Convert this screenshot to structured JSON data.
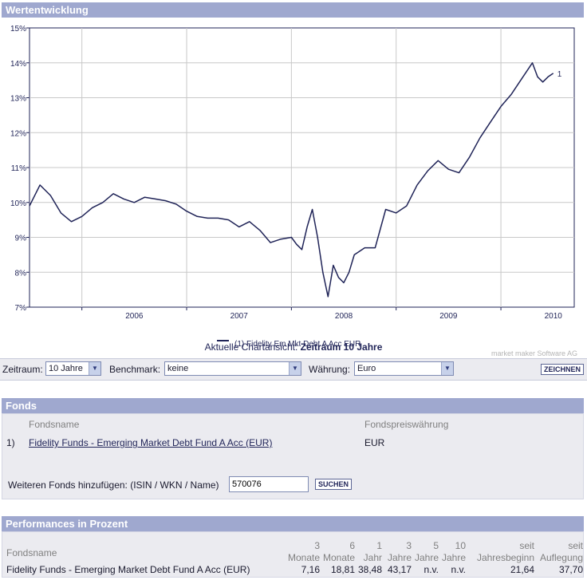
{
  "chart_section": {
    "title": "Wertentwicklung"
  },
  "chart_data": {
    "type": "line",
    "ylim": [
      7,
      15
    ],
    "y_ticks": [
      "7%",
      "8%",
      "9%",
      "10%",
      "11%",
      "12%",
      "13%",
      "14%",
      "15%"
    ],
    "x_ticks": [
      "2006",
      "2007",
      "2008",
      "2009",
      "2010"
    ],
    "grid": true,
    "legend_position": "bottom",
    "series": [
      {
        "name": "(1) Fidelity Em Mkt Debt A Acc EUR",
        "end_label": "1",
        "color": "#1f2357",
        "x": [
          2005.5,
          2005.6,
          2005.7,
          2005.8,
          2005.9,
          2006.0,
          2006.1,
          2006.2,
          2006.3,
          2006.4,
          2006.5,
          2006.6,
          2006.7,
          2006.8,
          2006.9,
          2007.0,
          2007.1,
          2007.2,
          2007.3,
          2007.4,
          2007.5,
          2007.6,
          2007.7,
          2007.8,
          2007.9,
          2008.0,
          2008.05,
          2008.1,
          2008.15,
          2008.2,
          2008.25,
          2008.3,
          2008.35,
          2008.4,
          2008.45,
          2008.5,
          2008.55,
          2008.6,
          2008.7,
          2008.8,
          2008.9,
          2009.0,
          2009.1,
          2009.2,
          2009.3,
          2009.4,
          2009.5,
          2009.6,
          2009.7,
          2009.8,
          2009.9,
          2010.0,
          2010.1,
          2010.2,
          2010.3,
          2010.35,
          2010.4,
          2010.45,
          2010.5
        ],
        "values": [
          9.9,
          10.5,
          10.2,
          9.7,
          9.45,
          9.6,
          9.85,
          10.0,
          10.25,
          10.1,
          10.0,
          10.15,
          10.1,
          10.05,
          9.95,
          9.75,
          9.6,
          9.55,
          9.55,
          9.5,
          9.3,
          9.45,
          9.2,
          8.85,
          8.95,
          9.0,
          8.8,
          8.65,
          9.3,
          9.8,
          9.0,
          8.0,
          7.3,
          8.2,
          7.85,
          7.7,
          8.0,
          8.5,
          8.7,
          8.7,
          9.8,
          9.7,
          9.9,
          10.5,
          10.9,
          11.2,
          10.95,
          10.85,
          11.3,
          11.85,
          12.3,
          12.75,
          13.1,
          13.55,
          14.0,
          13.6,
          13.45,
          13.6,
          13.7
        ]
      }
    ]
  },
  "chart_credit": "market maker Software AG",
  "current_view": {
    "prefix": "Aktuelle Chartansicht:",
    "value": "Zeitraum 10 Jahre"
  },
  "controls": {
    "zeitraum_label": "Zeitraum:",
    "zeitraum_value": "10 Jahre",
    "benchmark_label": "Benchmark:",
    "benchmark_value": "keine",
    "waehrung_label": "Währung:",
    "waehrung_value": "Euro",
    "draw_button": "ZEICHNEN"
  },
  "fonds": {
    "title": "Fonds",
    "col_name": "Fondsname",
    "col_currency": "Fondspreiswährung",
    "rows": [
      {
        "num": "1)",
        "name": "Fidelity Funds - Emerging Market Debt Fund A Acc (EUR)",
        "currency": "EUR"
      }
    ],
    "add_label": "Weiteren Fonds hinzufügen: (ISIN / WKN / Name)",
    "add_value": "570076",
    "search_button": "SUCHEN"
  },
  "performance": {
    "title": "Performances in Prozent",
    "col_name": "Fondsname",
    "cols": [
      {
        "l1": "3",
        "l2": "Monate"
      },
      {
        "l1": "6",
        "l2": "Monate"
      },
      {
        "l1": "1",
        "l2": "Jahr"
      },
      {
        "l1": "3",
        "l2": "Jahre"
      },
      {
        "l1": "5",
        "l2": "Jahre"
      },
      {
        "l1": "10",
        "l2": "Jahre"
      },
      {
        "l1": "seit",
        "l2": "Jahresbeginn"
      },
      {
        "l1": "seit",
        "l2": "Auflegung"
      }
    ],
    "row": {
      "name": "Fidelity Funds - Emerging Market Debt Fund A Acc (EUR)",
      "values": [
        "7,16",
        "18,81",
        "38,48",
        "43,17",
        "n.v.",
        "n.v.",
        "21,64",
        "37,70"
      ]
    }
  }
}
